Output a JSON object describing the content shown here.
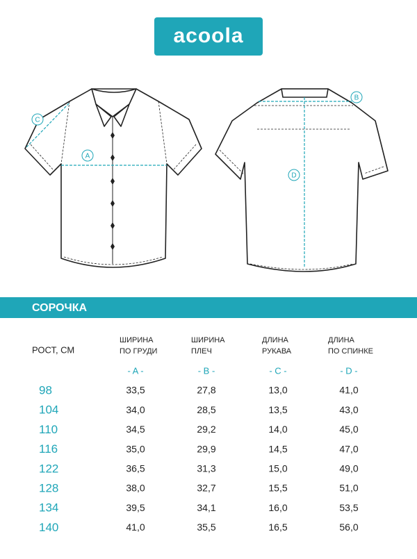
{
  "header": {
    "logo": "acoola"
  },
  "diagram": {
    "labels": [
      "A",
      "B",
      "C",
      "D"
    ]
  },
  "banner": {
    "title": "СОРОЧКА"
  },
  "table": {
    "row_header": "РОСТ, СМ",
    "columns": [
      {
        "name": [
          "ШИРИНА",
          "ПО ГРУДИ"
        ],
        "code": "- A -"
      },
      {
        "name": [
          "ШИРИНА",
          "ПЛЕЧ"
        ],
        "code": "- B -"
      },
      {
        "name": [
          "ДЛИНА",
          "РУКАВА"
        ],
        "code": "- C -"
      },
      {
        "name": [
          "ДЛИНА",
          "ПО СПИНКЕ"
        ],
        "code": "- D -"
      }
    ],
    "rows": [
      [
        "98",
        "33,5",
        "27,8",
        "13,0",
        "41,0"
      ],
      [
        "104",
        "34,0",
        "28,5",
        "13,5",
        "43,0"
      ],
      [
        "110",
        "34,5",
        "29,2",
        "14,0",
        "45,0"
      ],
      [
        "116",
        "35,0",
        "29,9",
        "14,5",
        "47,0"
      ],
      [
        "122",
        "36,5",
        "31,3",
        "15,0",
        "49,0"
      ],
      [
        "128",
        "38,0",
        "32,7",
        "15,5",
        "51,0"
      ],
      [
        "134",
        "39,5",
        "34,1",
        "16,0",
        "53,5"
      ],
      [
        "140",
        "41,0",
        "35,5",
        "16,5",
        "56,0"
      ]
    ]
  }
}
